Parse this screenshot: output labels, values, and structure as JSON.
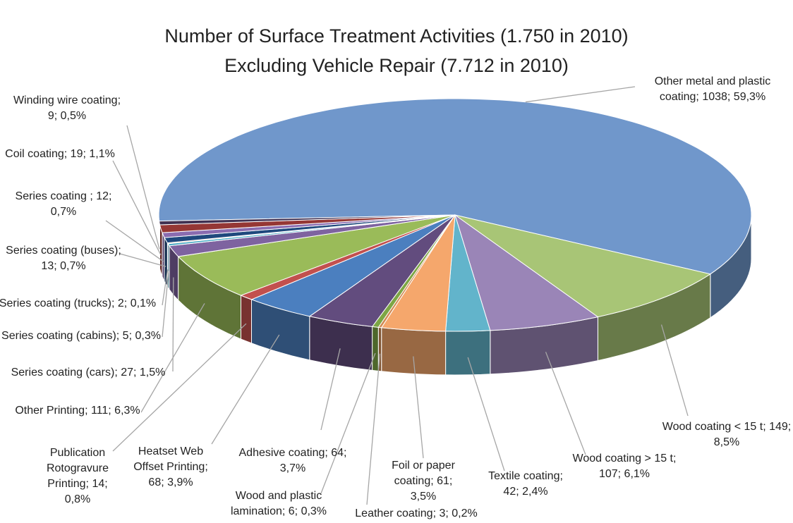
{
  "chart_data": {
    "type": "pie3d",
    "title": "Number of Surface Treatment Activities (1.750 in 2010)",
    "subtitle": "Excluding Vehicle Repair (7.712 in 2010)",
    "values": [
      1038,
      149,
      107,
      42,
      61,
      3,
      6,
      64,
      68,
      14,
      111,
      27,
      5,
      2,
      13,
      12,
      19,
      9
    ],
    "value_labels": [
      "Other metal and plastic coating; 1038; 59,3%",
      "Wood coating < 15 t; 149; 8,5%",
      "Wood coating > 15 t; 107; 6,1%",
      "Textile coating; 42; 2,4%",
      "Foil or paper coating; 61; 3,5%",
      "Leather coating; 3; 0,2%",
      "Wood and plastic lamination; 6; 0,3%",
      "Adhesive coating; 64; 3,7%",
      "Heatset Web Offset Printing; 68; 3,9%",
      "Publication Rotogravure Printing; 14; 0,8%",
      "Other Printing; 111; 6,3%",
      "Series coating (cars); 27; 1,5%",
      "Series coating (cabins); 5; 0,3%",
      "Series coating (trucks); 2; 0,1%",
      "Series coating (buses); 13; 0,7%",
      "Series coating ; 12; 0,7%",
      "Coil coating; 19; 1,1%",
      "Winding wire coating; 9; 0,5%"
    ],
    "colors": [
      "#7097cb",
      "#a8c576",
      "#9a85b7",
      "#62b4cb",
      "#f5a76c",
      "#d08b55",
      "#7da645",
      "#624c7e",
      "#4b7fbf",
      "#c2504e",
      "#9abb59",
      "#7e63a0",
      "#4aabc5",
      "#f79646",
      "#1f497d",
      "#8a6cb0",
      "#953735",
      "#403152"
    ]
  }
}
